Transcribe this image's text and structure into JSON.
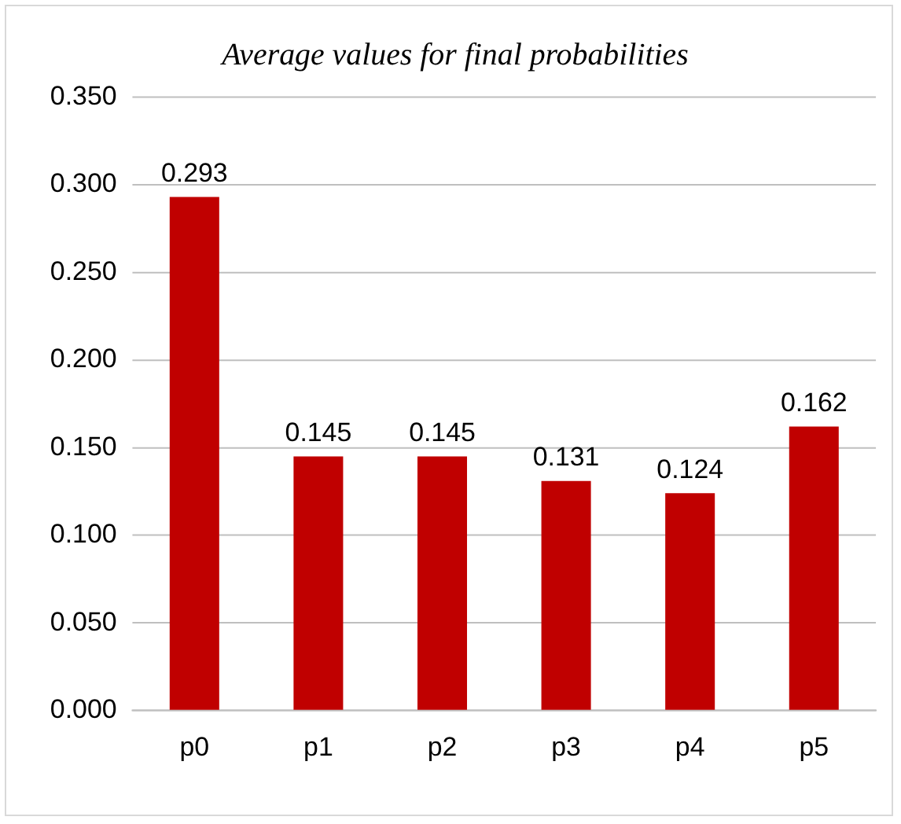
{
  "chart_data": {
    "type": "bar",
    "title": "Average values for final probabilities",
    "categories": [
      "p0",
      "p1",
      "p2",
      "p3",
      "p4",
      "p5"
    ],
    "values": [
      0.293,
      0.145,
      0.145,
      0.131,
      0.124,
      0.162
    ],
    "color": "#c00000",
    "ylim": [
      0,
      0.35
    ],
    "yticks": [
      {
        "value": 0,
        "label": "0.000"
      },
      {
        "value": 0.05,
        "label": "0.050"
      },
      {
        "value": 0.1,
        "label": "0.100"
      },
      {
        "value": 0.15,
        "label": "0.150"
      },
      {
        "value": 0.2,
        "label": "0.200"
      },
      {
        "value": 0.25,
        "label": "0.250"
      },
      {
        "value": 0.3,
        "label": "0.300"
      },
      {
        "value": 0.35,
        "label": "0.350"
      }
    ],
    "grid": "y",
    "legend": false,
    "data_labels": true
  }
}
